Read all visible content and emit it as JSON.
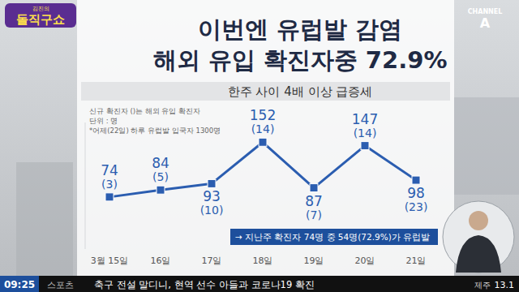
{
  "chart_data": {
    "type": "line",
    "title": [
      "이번엔 유럽발 감염",
      "해외 유입 확진자중 72.9%"
    ],
    "subtitle": "한주 사이 4배 이상 급증세",
    "notes": [
      "신규 확진자 ()는 해외 유입 확진자",
      "단위 : 명",
      "*어제(22일) 하루 유럽발 입국자 1300명"
    ],
    "callout": "→ 지난주 확진자 74명 중 54명(72.9%)가 유럽발",
    "categories": [
      "3월 15일",
      "16일",
      "17일",
      "18일",
      "19일",
      "20일",
      "21일"
    ],
    "series": [
      {
        "color": "#2b5db0",
        "marker": "square",
        "values": [
          74,
          84,
          93,
          152,
          87,
          147,
          98
        ],
        "overseas": [
          3,
          5,
          10,
          14,
          7,
          14,
          23
        ],
        "overseas_labels": [
          "(3)",
          "(5)",
          "(10)",
          "(14)",
          "(7)",
          "(14)",
          "(23)"
        ]
      }
    ],
    "ylim": [
      0,
      180
    ],
    "data_labels": true,
    "tick_labels": "x",
    "grid": false
  },
  "page": {
    "logo": [
      "김진의",
      "돌직구쇼"
    ],
    "channel": [
      "CHANNEL",
      "A"
    ],
    "ticker": {
      "time": "09:25",
      "section": "스포츠",
      "headline": "축구 전설 말디니, 현역 선수 아들과 코로나19 확진",
      "region": "제주",
      "temperature": "13.1"
    }
  }
}
